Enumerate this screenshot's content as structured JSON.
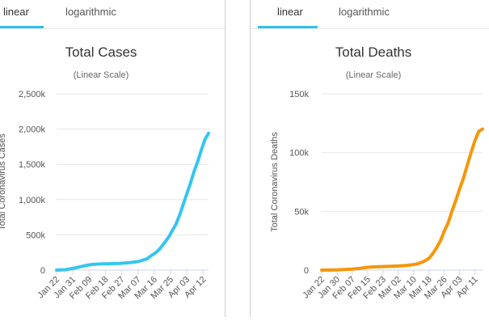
{
  "colors": {
    "accent": "#2fc0f0",
    "cases_line": "#36c5f0",
    "deaths_line": "#f5960a",
    "grid": "#e6e6e6",
    "axis": "#ccd6eb"
  },
  "chart_data": [
    {
      "type": "line",
      "tabs": [
        {
          "label": "linear",
          "active": true
        },
        {
          "label": "logarithmic",
          "active": false
        }
      ],
      "title": "Total Cases",
      "subtitle": "(Linear Scale)",
      "ylabel": "Total Coronavirus Cases",
      "xlabel": "",
      "ylim": [
        0,
        2500000
      ],
      "yticks": [
        0,
        500000,
        1000000,
        1500000,
        2000000,
        2500000
      ],
      "ytick_labels": [
        "0",
        "500k",
        "1,000k",
        "1,500k",
        "2,000k",
        "2,500k"
      ],
      "x_tick_labels": [
        "Jan 22",
        "Jan 31",
        "Feb 09",
        "Feb 18",
        "Feb 27",
        "Mar 07",
        "Mar 16",
        "Mar 25",
        "Apr 03",
        "Apr 12"
      ],
      "x_tick_days": [
        0,
        9,
        18,
        27,
        36,
        45,
        54,
        63,
        72,
        81
      ],
      "x_range_days": [
        0,
        84
      ],
      "series": [
        {
          "name": "Cases",
          "color": "#36c5f0",
          "x": [
            0,
            5,
            10,
            15,
            18,
            20,
            22,
            25,
            28,
            30,
            35,
            40,
            45,
            50,
            52,
            55,
            57,
            60,
            62,
            64,
            66,
            68,
            70,
            72,
            74,
            76,
            78,
            80,
            82,
            84
          ],
          "values": [
            555,
            6000,
            30000,
            60000,
            75000,
            80000,
            85000,
            88000,
            90000,
            92000,
            95000,
            105000,
            120000,
            160000,
            200000,
            250000,
            300000,
            400000,
            470000,
            560000,
            650000,
            780000,
            930000,
            1080000,
            1230000,
            1400000,
            1540000,
            1700000,
            1850000,
            1940000
          ]
        }
      ]
    },
    {
      "type": "line",
      "tabs": [
        {
          "label": "linear",
          "active": true
        },
        {
          "label": "logarithmic",
          "active": false
        }
      ],
      "title": "Total Deaths",
      "subtitle": "(Linear Scale)",
      "ylabel": "Total Coronavirus Deaths",
      "xlabel": "",
      "ylim": [
        0,
        150000
      ],
      "yticks": [
        0,
        50000,
        100000,
        150000
      ],
      "ytick_labels": [
        "0",
        "50k",
        "100k",
        "150k"
      ],
      "x_tick_labels": [
        "Jan 22",
        "Jan 30",
        "Feb 07",
        "Feb 15",
        "Feb 23",
        "Mar 02",
        "Mar 10",
        "Mar 18",
        "Mar 26",
        "Apr 03",
        "Apr 11"
      ],
      "x_tick_days": [
        0,
        8,
        16,
        24,
        32,
        40,
        48,
        56,
        64,
        72,
        80
      ],
      "x_range_days": [
        0,
        84
      ],
      "series": [
        {
          "name": "Deaths",
          "color": "#f5960a",
          "x": [
            0,
            8,
            16,
            20,
            24,
            28,
            32,
            36,
            40,
            44,
            48,
            50,
            52,
            54,
            56,
            58,
            60,
            62,
            64,
            66,
            68,
            70,
            72,
            74,
            76,
            78,
            80,
            82,
            84
          ],
          "values": [
            17,
            200,
            900,
            1500,
            2400,
            2800,
            3000,
            3200,
            3500,
            4000,
            4700,
            5400,
            6500,
            8000,
            10000,
            14000,
            19000,
            25000,
            33000,
            40000,
            50000,
            59000,
            69000,
            78000,
            89000,
            100000,
            110000,
            118000,
            120000
          ]
        }
      ]
    }
  ]
}
